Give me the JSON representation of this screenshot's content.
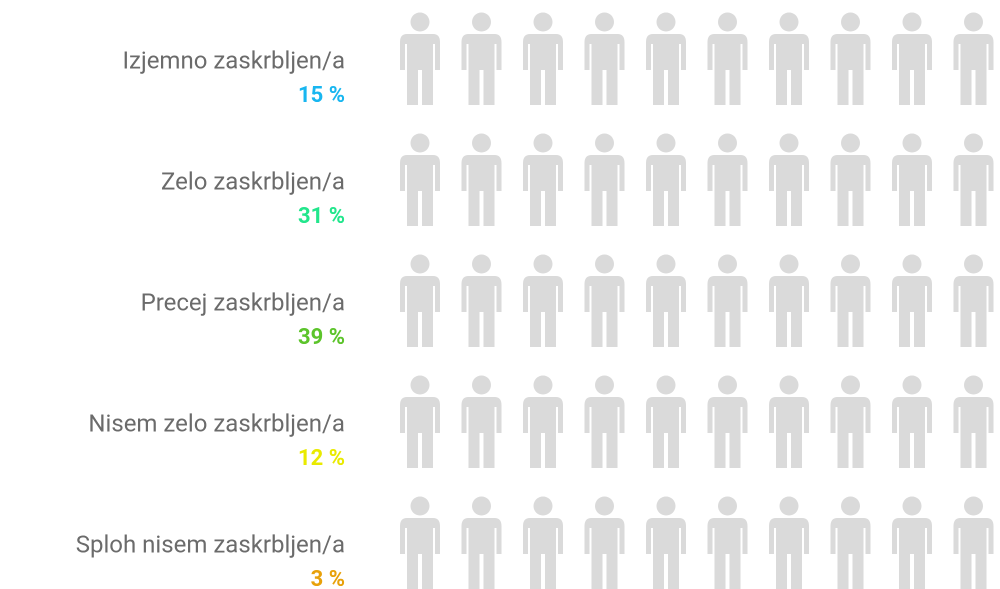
{
  "chart_data": {
    "type": "pictograph",
    "categories": [
      "Izjemno zaskrbljen/a",
      "Zelo zaskrbljen/a",
      "Precej zaskrbljen/a",
      "Nisem zelo zaskrbljen/a",
      "Sploh nisem zaskrbljen/a"
    ],
    "values": [
      15,
      31,
      39,
      12,
      3
    ],
    "value_labels": [
      "15 %",
      "31 %",
      "39 %",
      "12 %",
      "3 %"
    ],
    "colors": [
      "#18b6f0",
      "#22e68c",
      "#5cc42b",
      "#e9ea00",
      "#e8a10a"
    ],
    "empty_color": "#dadada"
  }
}
